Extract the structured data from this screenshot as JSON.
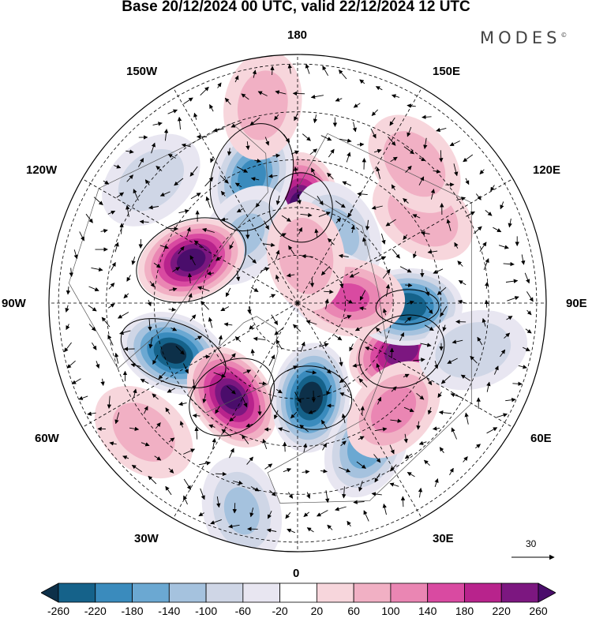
{
  "title": "Base 20/12/2024 00 UTC, valid 22/12/2024 12 UTC",
  "brand": "MODES",
  "brand_mark": "©",
  "longitude_labels": {
    "top": "180",
    "bottom": "0",
    "left": "90W",
    "right": "90E",
    "upper_left": "150W",
    "upper_right": "150E",
    "mid_upper_left": "120W",
    "mid_upper_right": "120E",
    "mid_lower_left": "60W",
    "mid_lower_right": "60E",
    "lower_left": "30W",
    "lower_right": "30E"
  },
  "vector_scale_label": "30",
  "colorbar": {
    "ticks": [
      "-260",
      "-220",
      "-180",
      "-140",
      "-100",
      "-60",
      "-20",
      "20",
      "60",
      "100",
      "140",
      "180",
      "220",
      "260"
    ],
    "colors": [
      "#0d3049",
      "#15628a",
      "#3a8bbd",
      "#6ba8d2",
      "#a5c2de",
      "#cfd6e6",
      "#e8e6f1",
      "#ffffff",
      "#f7d6dc",
      "#f1b0c4",
      "#ea86b3",
      "#d94aa1",
      "#b8238c",
      "#7c1780",
      "#4a0d6b"
    ]
  },
  "anomalies": [
    {
      "lon": 178,
      "colat": 20,
      "value": 280
    },
    {
      "lon": 150,
      "colat": 17,
      "value": -110
    },
    {
      "lon": -160,
      "colat": 28,
      "value": -190
    },
    {
      "lon": -142,
      "colat": 18,
      "value": -100
    },
    {
      "lon": -112,
      "colat": 24,
      "value": 270
    },
    {
      "lon": -68,
      "colat": 28,
      "value": -260
    },
    {
      "lon": -35,
      "colat": 24,
      "value": 260
    },
    {
      "lon": 8,
      "colat": 20,
      "value": -280
    },
    {
      "lon": 26,
      "colat": 33,
      "value": -170
    },
    {
      "lon": 65,
      "colat": 24,
      "value": 240
    },
    {
      "lon": 42,
      "colat": 30,
      "value": 110
    },
    {
      "lon": 88,
      "colat": 23,
      "value": -250
    },
    {
      "lon": 110,
      "colat": 8,
      "value": -120
    },
    {
      "lon": 96,
      "colat": 11,
      "value": 140
    },
    {
      "lon": 75,
      "colat": 38,
      "value": -90
    },
    {
      "lon": -15,
      "colat": 45,
      "value": -100
    },
    {
      "lon": -130,
      "colat": 40,
      "value": -80
    },
    {
      "lon": 125,
      "colat": 32,
      "value": 90
    },
    {
      "lon": 140,
      "colat": 38,
      "value": 80
    },
    {
      "lon": -170,
      "colat": 42,
      "value": 70
    },
    {
      "lon": -50,
      "colat": 42,
      "value": 70
    },
    {
      "lon": 170,
      "colat": 10,
      "value": 90
    }
  ]
}
